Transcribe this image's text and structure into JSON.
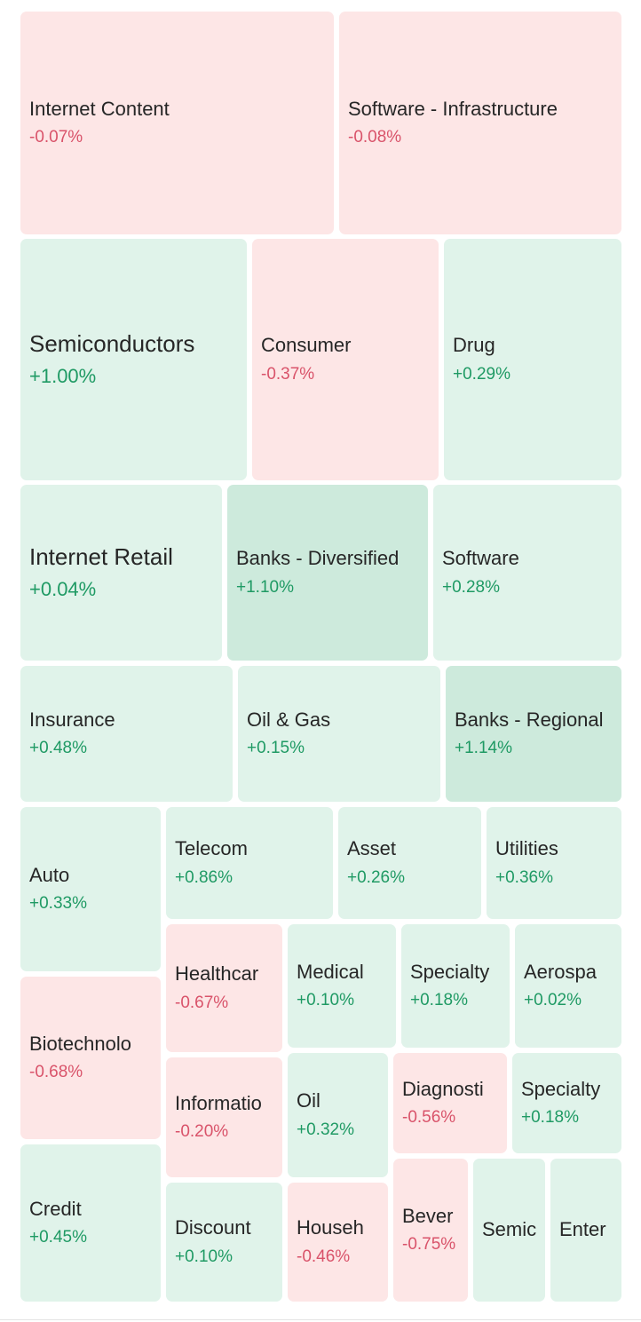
{
  "chart_data": {
    "type": "treemap",
    "tiles": [
      {
        "name": "Internet Content",
        "change": "-0.07%",
        "value": -0.07
      },
      {
        "name": "Software - Infrastructure",
        "change": "-0.08%",
        "value": -0.08
      },
      {
        "name": "Semiconductors",
        "change": "+1.00%",
        "value": 1.0
      },
      {
        "name": "Consumer",
        "change": "-0.37%",
        "value": -0.37
      },
      {
        "name": "Drug",
        "change": "+0.29%",
        "value": 0.29
      },
      {
        "name": "Internet Retail",
        "change": "+0.04%",
        "value": 0.04
      },
      {
        "name": "Banks - Diversified",
        "change": "+1.10%",
        "value": 1.1
      },
      {
        "name": "Software",
        "change": "+0.28%",
        "value": 0.28
      },
      {
        "name": "Insurance",
        "change": "+0.48%",
        "value": 0.48
      },
      {
        "name": "Oil & Gas",
        "change": "+0.15%",
        "value": 0.15
      },
      {
        "name": "Banks - Regional",
        "change": "+1.14%",
        "value": 1.14
      },
      {
        "name": "Auto",
        "change": "+0.33%",
        "value": 0.33
      },
      {
        "name": "Telecom",
        "change": "+0.86%",
        "value": 0.86
      },
      {
        "name": "Asset",
        "change": "+0.26%",
        "value": 0.26
      },
      {
        "name": "Utilities",
        "change": "+0.36%",
        "value": 0.36
      },
      {
        "name": "Biotechnolo",
        "change": "-0.68%",
        "value": -0.68
      },
      {
        "name": "Healthcar",
        "change": "-0.67%",
        "value": -0.67
      },
      {
        "name": "Medical",
        "change": "+0.10%",
        "value": 0.1
      },
      {
        "name": "Specialty",
        "change": "+0.18%",
        "value": 0.18
      },
      {
        "name": "Aerospa",
        "change": "+0.02%",
        "value": 0.02
      },
      {
        "name": "Informatio",
        "change": "-0.20%",
        "value": -0.2
      },
      {
        "name": "Oil",
        "change": "+0.32%",
        "value": 0.32
      },
      {
        "name": "Diagnosti",
        "change": "-0.56%",
        "value": -0.56
      },
      {
        "name": "Specialty",
        "change": "+0.18%",
        "value": 0.18
      },
      {
        "name": "Credit",
        "change": "+0.45%",
        "value": 0.45
      },
      {
        "name": "Discount",
        "change": "+0.10%",
        "value": 0.1
      },
      {
        "name": "Househ",
        "change": "-0.46%",
        "value": -0.46
      },
      {
        "name": "Bever",
        "change": "-0.75%",
        "value": -0.75
      },
      {
        "name": "Semic",
        "change": "",
        "value": null
      },
      {
        "name": "Enter",
        "change": "",
        "value": null
      }
    ],
    "colors": {
      "negative_bg": "#fde6e6",
      "positive_bg": "#e0f3ea",
      "strong_positive_bg": "#cdeadc",
      "negative_text": "#d9536a",
      "positive_text": "#1f9a64",
      "label_text": "#262626"
    }
  }
}
